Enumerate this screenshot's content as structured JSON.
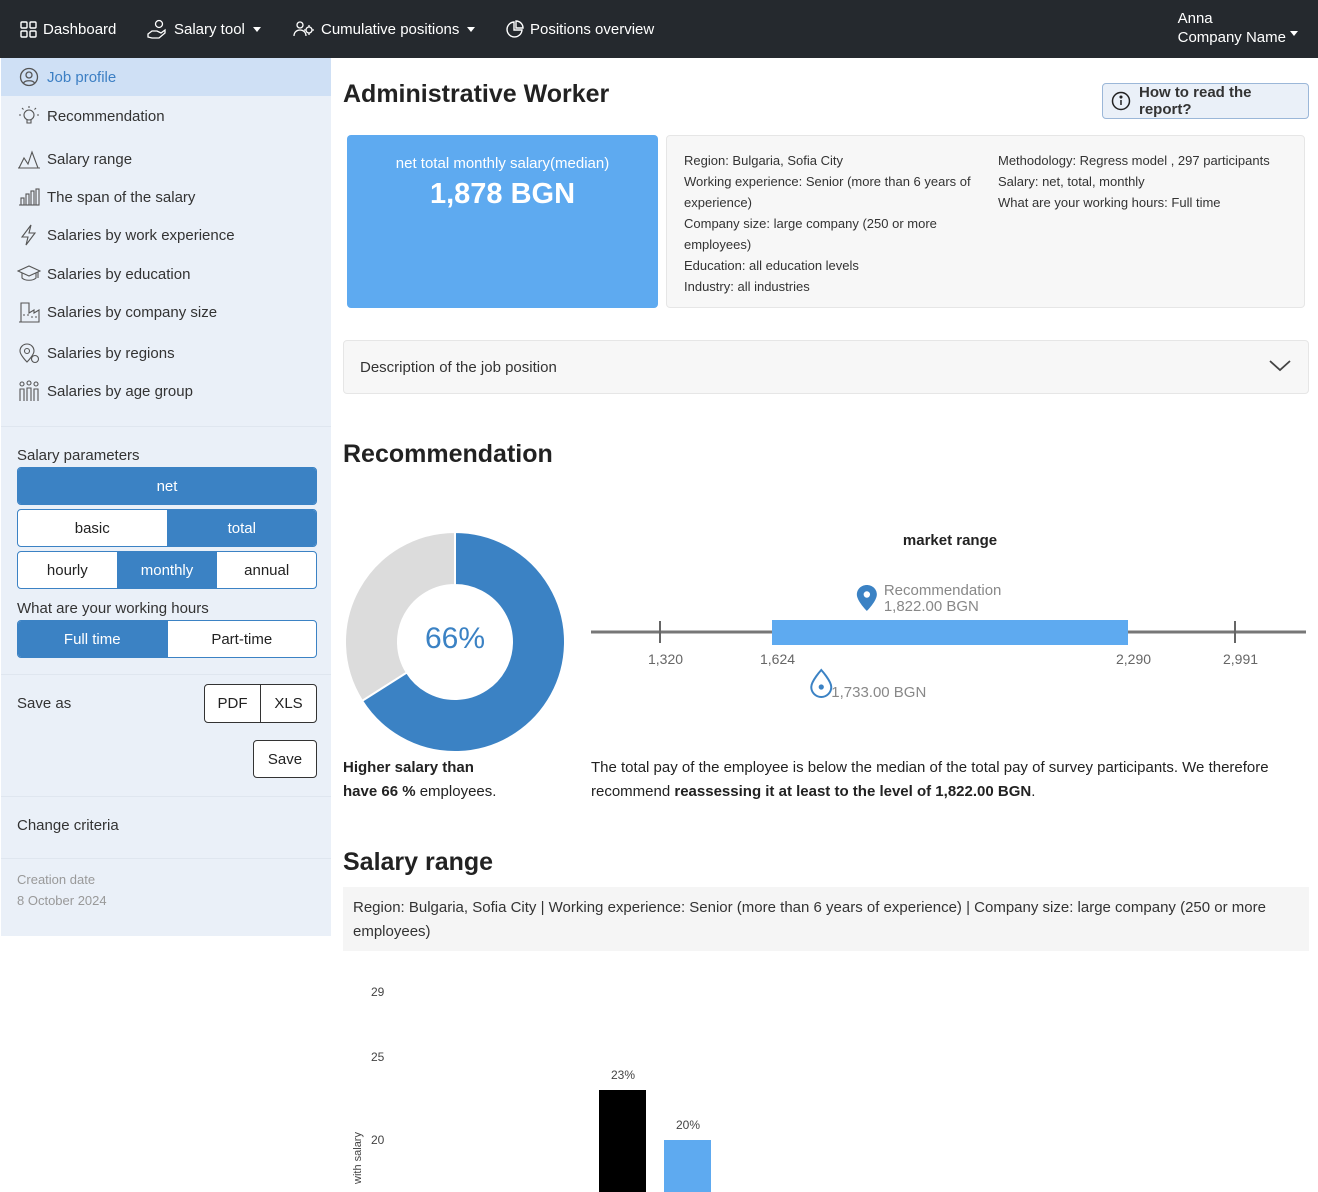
{
  "navbar": {
    "items": [
      {
        "label": "Dashboard",
        "icon": "grid-icon"
      },
      {
        "label": "Salary tool",
        "icon": "hand-coin-icon",
        "dropdown": true
      },
      {
        "label": "Cumulative positions",
        "icon": "users-gear-icon",
        "dropdown": true
      },
      {
        "label": "Positions overview",
        "icon": "pie-icon"
      }
    ],
    "user": {
      "name": "Anna",
      "company": "Company Name"
    }
  },
  "sidebar": {
    "items": [
      {
        "label": "Job profile",
        "icon": "user-circle-icon",
        "active": true
      },
      {
        "label": "Recommendation",
        "icon": "lightbulb-icon"
      },
      {
        "label": "Salary range",
        "icon": "area-chart-icon"
      },
      {
        "label": "The span of the salary",
        "icon": "bar-chart-icon"
      },
      {
        "label": "Salaries by work experience",
        "icon": "bolt-icon"
      },
      {
        "label": "Salaries by education",
        "icon": "graduation-cap-icon"
      },
      {
        "label": "Salaries by company size",
        "icon": "factory-icon"
      },
      {
        "label": "Salaries by regions",
        "icon": "map-pin-icon"
      },
      {
        "label": "Salaries by age group",
        "icon": "people-group-icon"
      }
    ],
    "salary_parameters_label": "Salary parameters",
    "net_label": "net",
    "basic_label": "basic",
    "total_label": "total",
    "hourly_label": "hourly",
    "monthly_label": "monthly",
    "annual_label": "annual",
    "working_hours_label": "What are your working hours",
    "full_time_label": "Full time",
    "part_time_label": "Part-time",
    "save_as_label": "Save as",
    "pdf_label": "PDF",
    "xls_label": "XLS",
    "save_label": "Save",
    "change_criteria_label": "Change criteria",
    "creation_date_label": "Creation date",
    "creation_date": "8 October 2024"
  },
  "main": {
    "title": "Administrative Worker",
    "howto_label": "How to read the report?",
    "salary_card": {
      "label": "net total monthly salary(median)",
      "value": "1,878 BGN"
    },
    "info_left": [
      "Region: Bulgaria, Sofia City",
      "Working experience: Senior (more than 6 years of experience)",
      "Company size: large company (250 or more employees)",
      "Education: all education levels",
      "Industry: all industries"
    ],
    "info_right": [
      "Methodology: Regress model , 297 participants",
      "Salary: net, total, monthly",
      "What are your working hours: Full time"
    ],
    "accordion_label": "Description of the job position",
    "recommendation": {
      "title": "Recommendation",
      "donut_percent": 66,
      "donut_label": "66%",
      "higher_line1": "Higher salary than",
      "higher_bold": "have 66 %",
      "higher_rest": " employees.",
      "market_title": "market range",
      "ticks": [
        "1,320",
        "1,624",
        "2,290",
        "2,991"
      ],
      "tick_values": [
        1320,
        1624,
        2290,
        2991
      ],
      "range_low": 1624,
      "range_high": 2290,
      "recommendation_value": 1822,
      "recommendation_name": "Recommendation",
      "recommendation_amount": "1,822.00 BGN",
      "current_value": 1733,
      "current_amount": "1,733.00 BGN",
      "text_plain": "The total pay of the employee is below the median of the total pay of survey participants. We therefore recommend ",
      "text_bold": "reassessing it at least to the level of 1,822.00 BGN",
      "text_end": ".",
      "colors": {
        "accent": "#3b82c4",
        "range": "#5eaaf0",
        "donut_rest": "#dcdcdc"
      }
    },
    "salary_range": {
      "title": "Salary range",
      "filters": "Region: Bulgaria, Sofia City | Working experience: Senior (more than 6 years of experience) | Company size: large company (250 or more employees)",
      "y_label": "with salary",
      "y_ticks": [
        "29",
        "25",
        "20"
      ],
      "bars": [
        {
          "value": 23,
          "label": "23%",
          "color": "#000000"
        },
        {
          "value": 20,
          "label": "20%",
          "color": "#5eaaf0"
        }
      ]
    }
  }
}
